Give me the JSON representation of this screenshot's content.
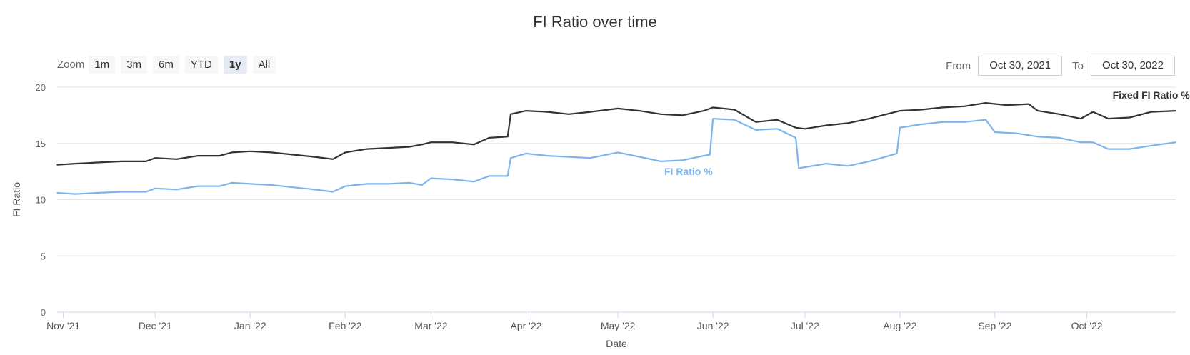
{
  "title": "FI Ratio over time",
  "zoom": {
    "label": "Zoom",
    "buttons": [
      "1m",
      "3m",
      "6m",
      "YTD",
      "1y",
      "All"
    ],
    "active": "1y"
  },
  "range": {
    "from_label": "From",
    "from_value": "Oct 30, 2021",
    "to_label": "To",
    "to_value": "Oct 30, 2022"
  },
  "chart_data": {
    "type": "line",
    "title": "FI Ratio over time",
    "xlabel": "Date",
    "ylabel": "FI Ratio",
    "x_range": [
      "2021-10-30",
      "2022-10-30"
    ],
    "ylim": [
      0,
      20
    ],
    "yticks": [
      0,
      5,
      10,
      15,
      20
    ],
    "xticks": [
      {
        "date": "2021-11-01",
        "label": "Nov '21"
      },
      {
        "date": "2021-12-01",
        "label": "Dec '21"
      },
      {
        "date": "2022-01-01",
        "label": "Jan '22"
      },
      {
        "date": "2022-02-01",
        "label": "Feb '22"
      },
      {
        "date": "2022-03-01",
        "label": "Mar '22"
      },
      {
        "date": "2022-04-01",
        "label": "Apr '22"
      },
      {
        "date": "2022-05-01",
        "label": "May '22"
      },
      {
        "date": "2022-06-01",
        "label": "Jun '22"
      },
      {
        "date": "2022-07-01",
        "label": "Jul '22"
      },
      {
        "date": "2022-08-01",
        "label": "Aug '22"
      },
      {
        "date": "2022-09-01",
        "label": "Sep '22"
      },
      {
        "date": "2022-10-01",
        "label": "Oct '22"
      }
    ],
    "grid": true,
    "legend": "inline labels",
    "series": [
      {
        "name": "Fixed FI Ratio %",
        "color": "#333333",
        "label_date": "2022-10-22",
        "label_y": 19.0,
        "points": [
          [
            "2021-10-30",
            13.1
          ],
          [
            "2021-11-05",
            13.2
          ],
          [
            "2021-11-12",
            13.3
          ],
          [
            "2021-11-20",
            13.4
          ],
          [
            "2021-11-28",
            13.4
          ],
          [
            "2021-12-01",
            13.7
          ],
          [
            "2021-12-08",
            13.6
          ],
          [
            "2021-12-15",
            13.9
          ],
          [
            "2021-12-22",
            13.9
          ],
          [
            "2021-12-26",
            14.2
          ],
          [
            "2022-01-01",
            14.3
          ],
          [
            "2022-01-08",
            14.2
          ],
          [
            "2022-01-15",
            14.0
          ],
          [
            "2022-01-22",
            13.8
          ],
          [
            "2022-01-28",
            13.6
          ],
          [
            "2022-02-01",
            14.2
          ],
          [
            "2022-02-08",
            14.5
          ],
          [
            "2022-02-15",
            14.6
          ],
          [
            "2022-02-22",
            14.7
          ],
          [
            "2022-02-26",
            14.9
          ],
          [
            "2022-03-01",
            15.1
          ],
          [
            "2022-03-08",
            15.1
          ],
          [
            "2022-03-15",
            14.9
          ],
          [
            "2022-03-20",
            15.5
          ],
          [
            "2022-03-26",
            15.6
          ],
          [
            "2022-03-27",
            17.6
          ],
          [
            "2022-04-01",
            17.9
          ],
          [
            "2022-04-08",
            17.8
          ],
          [
            "2022-04-15",
            17.6
          ],
          [
            "2022-04-22",
            17.8
          ],
          [
            "2022-05-01",
            18.1
          ],
          [
            "2022-05-08",
            17.9
          ],
          [
            "2022-05-15",
            17.6
          ],
          [
            "2022-05-22",
            17.5
          ],
          [
            "2022-05-29",
            17.9
          ],
          [
            "2022-06-01",
            18.2
          ],
          [
            "2022-06-08",
            18.0
          ],
          [
            "2022-06-15",
            16.9
          ],
          [
            "2022-06-22",
            17.1
          ],
          [
            "2022-06-28",
            16.4
          ],
          [
            "2022-07-01",
            16.3
          ],
          [
            "2022-07-08",
            16.6
          ],
          [
            "2022-07-15",
            16.8
          ],
          [
            "2022-07-22",
            17.2
          ],
          [
            "2022-08-01",
            17.9
          ],
          [
            "2022-08-08",
            18.0
          ],
          [
            "2022-08-15",
            18.2
          ],
          [
            "2022-08-22",
            18.3
          ],
          [
            "2022-08-29",
            18.6
          ],
          [
            "2022-09-05",
            18.4
          ],
          [
            "2022-09-12",
            18.5
          ],
          [
            "2022-09-15",
            17.9
          ],
          [
            "2022-09-22",
            17.6
          ],
          [
            "2022-09-29",
            17.2
          ],
          [
            "2022-10-03",
            17.8
          ],
          [
            "2022-10-08",
            17.2
          ],
          [
            "2022-10-15",
            17.3
          ],
          [
            "2022-10-22",
            17.8
          ],
          [
            "2022-10-30",
            17.9
          ]
        ]
      },
      {
        "name": "FI Ratio %",
        "color": "#7cb5ec",
        "label_date": "2022-05-24",
        "label_y": 12.2,
        "points": [
          [
            "2021-10-30",
            10.6
          ],
          [
            "2021-11-05",
            10.5
          ],
          [
            "2021-11-12",
            10.6
          ],
          [
            "2021-11-20",
            10.7
          ],
          [
            "2021-11-28",
            10.7
          ],
          [
            "2021-12-01",
            11.0
          ],
          [
            "2021-12-08",
            10.9
          ],
          [
            "2021-12-15",
            11.2
          ],
          [
            "2021-12-22",
            11.2
          ],
          [
            "2021-12-26",
            11.5
          ],
          [
            "2022-01-01",
            11.4
          ],
          [
            "2022-01-08",
            11.3
          ],
          [
            "2022-01-15",
            11.1
          ],
          [
            "2022-01-22",
            10.9
          ],
          [
            "2022-01-28",
            10.7
          ],
          [
            "2022-02-01",
            11.2
          ],
          [
            "2022-02-08",
            11.4
          ],
          [
            "2022-02-15",
            11.4
          ],
          [
            "2022-02-22",
            11.5
          ],
          [
            "2022-02-26",
            11.3
          ],
          [
            "2022-03-01",
            11.9
          ],
          [
            "2022-03-08",
            11.8
          ],
          [
            "2022-03-15",
            11.6
          ],
          [
            "2022-03-20",
            12.1
          ],
          [
            "2022-03-26",
            12.1
          ],
          [
            "2022-03-27",
            13.7
          ],
          [
            "2022-04-01",
            14.1
          ],
          [
            "2022-04-08",
            13.9
          ],
          [
            "2022-04-15",
            13.8
          ],
          [
            "2022-04-22",
            13.7
          ],
          [
            "2022-05-01",
            14.2
          ],
          [
            "2022-05-08",
            13.8
          ],
          [
            "2022-05-15",
            13.4
          ],
          [
            "2022-05-22",
            13.5
          ],
          [
            "2022-05-29",
            13.9
          ],
          [
            "2022-05-31",
            14.0
          ],
          [
            "2022-06-01",
            17.2
          ],
          [
            "2022-06-08",
            17.1
          ],
          [
            "2022-06-15",
            16.2
          ],
          [
            "2022-06-22",
            16.3
          ],
          [
            "2022-06-28",
            15.5
          ],
          [
            "2022-06-29",
            12.8
          ],
          [
            "2022-07-08",
            13.2
          ],
          [
            "2022-07-15",
            13.0
          ],
          [
            "2022-07-22",
            13.4
          ],
          [
            "2022-07-31",
            14.1
          ],
          [
            "2022-08-01",
            16.4
          ],
          [
            "2022-08-08",
            16.7
          ],
          [
            "2022-08-15",
            16.9
          ],
          [
            "2022-08-22",
            16.9
          ],
          [
            "2022-08-29",
            17.1
          ],
          [
            "2022-09-01",
            16.0
          ],
          [
            "2022-09-08",
            15.9
          ],
          [
            "2022-09-15",
            15.6
          ],
          [
            "2022-09-22",
            15.5
          ],
          [
            "2022-09-29",
            15.1
          ],
          [
            "2022-10-03",
            15.1
          ],
          [
            "2022-10-08",
            14.5
          ],
          [
            "2022-10-15",
            14.5
          ],
          [
            "2022-10-22",
            14.8
          ],
          [
            "2022-10-30",
            15.1
          ]
        ]
      }
    ]
  }
}
